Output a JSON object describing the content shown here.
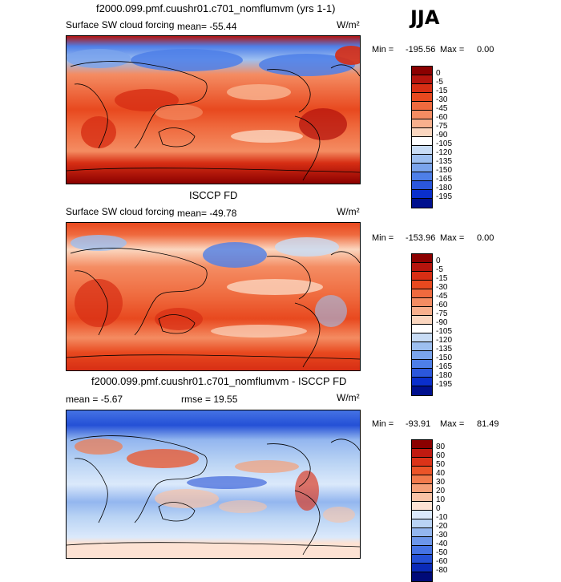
{
  "season": "JJA",
  "chart_data": [
    {
      "type": "heatmap",
      "title": "f2000.099.pmf.cuushr01.c701_nomflumvm (yrs 1-1)",
      "variable": "Surface SW cloud forcing",
      "mean_text": "mean= -55.44",
      "units": "W/m²",
      "stats": {
        "min_label": "Min =",
        "min": "-195.56",
        "max_label": "Max =",
        "max": "0.00"
      },
      "colorbar": {
        "levels": [
          "0",
          "-5",
          "-15",
          "-30",
          "-45",
          "-60",
          "-75",
          "-90",
          "-105",
          "-120",
          "-135",
          "-150",
          "-165",
          "-180",
          "-195"
        ],
        "colors": [
          "#8b0000",
          "#b5140d",
          "#d72e14",
          "#e8491f",
          "#ef6a3e",
          "#f48c62",
          "#f8b08d",
          "#fbd6bf",
          "#ffffff",
          "#c8dcf5",
          "#9dbff0",
          "#7aa4ec",
          "#4e7fe8",
          "#2b57dc",
          "#0a2fcc",
          "#00108e"
        ]
      }
    },
    {
      "type": "heatmap",
      "title": "ISCCP FD",
      "variable": "Surface SW cloud forcing",
      "mean_text": "mean= -49.78",
      "units": "W/m²",
      "stats": {
        "min_label": "Min =",
        "min": "-153.96",
        "max_label": "Max =",
        "max": "0.00"
      },
      "colorbar": {
        "levels": [
          "0",
          "-5",
          "-15",
          "-30",
          "-45",
          "-60",
          "-75",
          "-90",
          "-105",
          "-120",
          "-135",
          "-150",
          "-165",
          "-180",
          "-195"
        ],
        "colors": [
          "#8b0000",
          "#b5140d",
          "#d72e14",
          "#e8491f",
          "#ef6a3e",
          "#f48c62",
          "#f8b08d",
          "#fbd6bf",
          "#ffffff",
          "#c8dcf5",
          "#9dbff0",
          "#7aa4ec",
          "#4e7fe8",
          "#2b57dc",
          "#0a2fcc",
          "#00108e"
        ]
      }
    },
    {
      "type": "heatmap",
      "title": "f2000.099.pmf.cuushr01.c701_nomflumvm - ISCCP FD",
      "mean_text": "mean =   -5.67",
      "rmse_text": "rmse =   19.55",
      "units": "W/m²",
      "stats": {
        "min_label": "Min =",
        "min": "-93.91",
        "max_label": "Max =",
        "max": "81.49"
      },
      "colorbar": {
        "levels": [
          "80",
          "60",
          "50",
          "40",
          "30",
          "20",
          "10",
          "0",
          "-10",
          "-20",
          "-30",
          "-40",
          "-50",
          "-60",
          "-80"
        ],
        "colors": [
          "#8b0000",
          "#c01a10",
          "#dc3318",
          "#ec5428",
          "#f27a4c",
          "#f59f78",
          "#f9c3a6",
          "#fde2d3",
          "#dbe9fb",
          "#b9d3f4",
          "#93b6ef",
          "#6c96ea",
          "#4573e4",
          "#2450d6",
          "#0a2ab8",
          "#000a78"
        ]
      }
    }
  ]
}
